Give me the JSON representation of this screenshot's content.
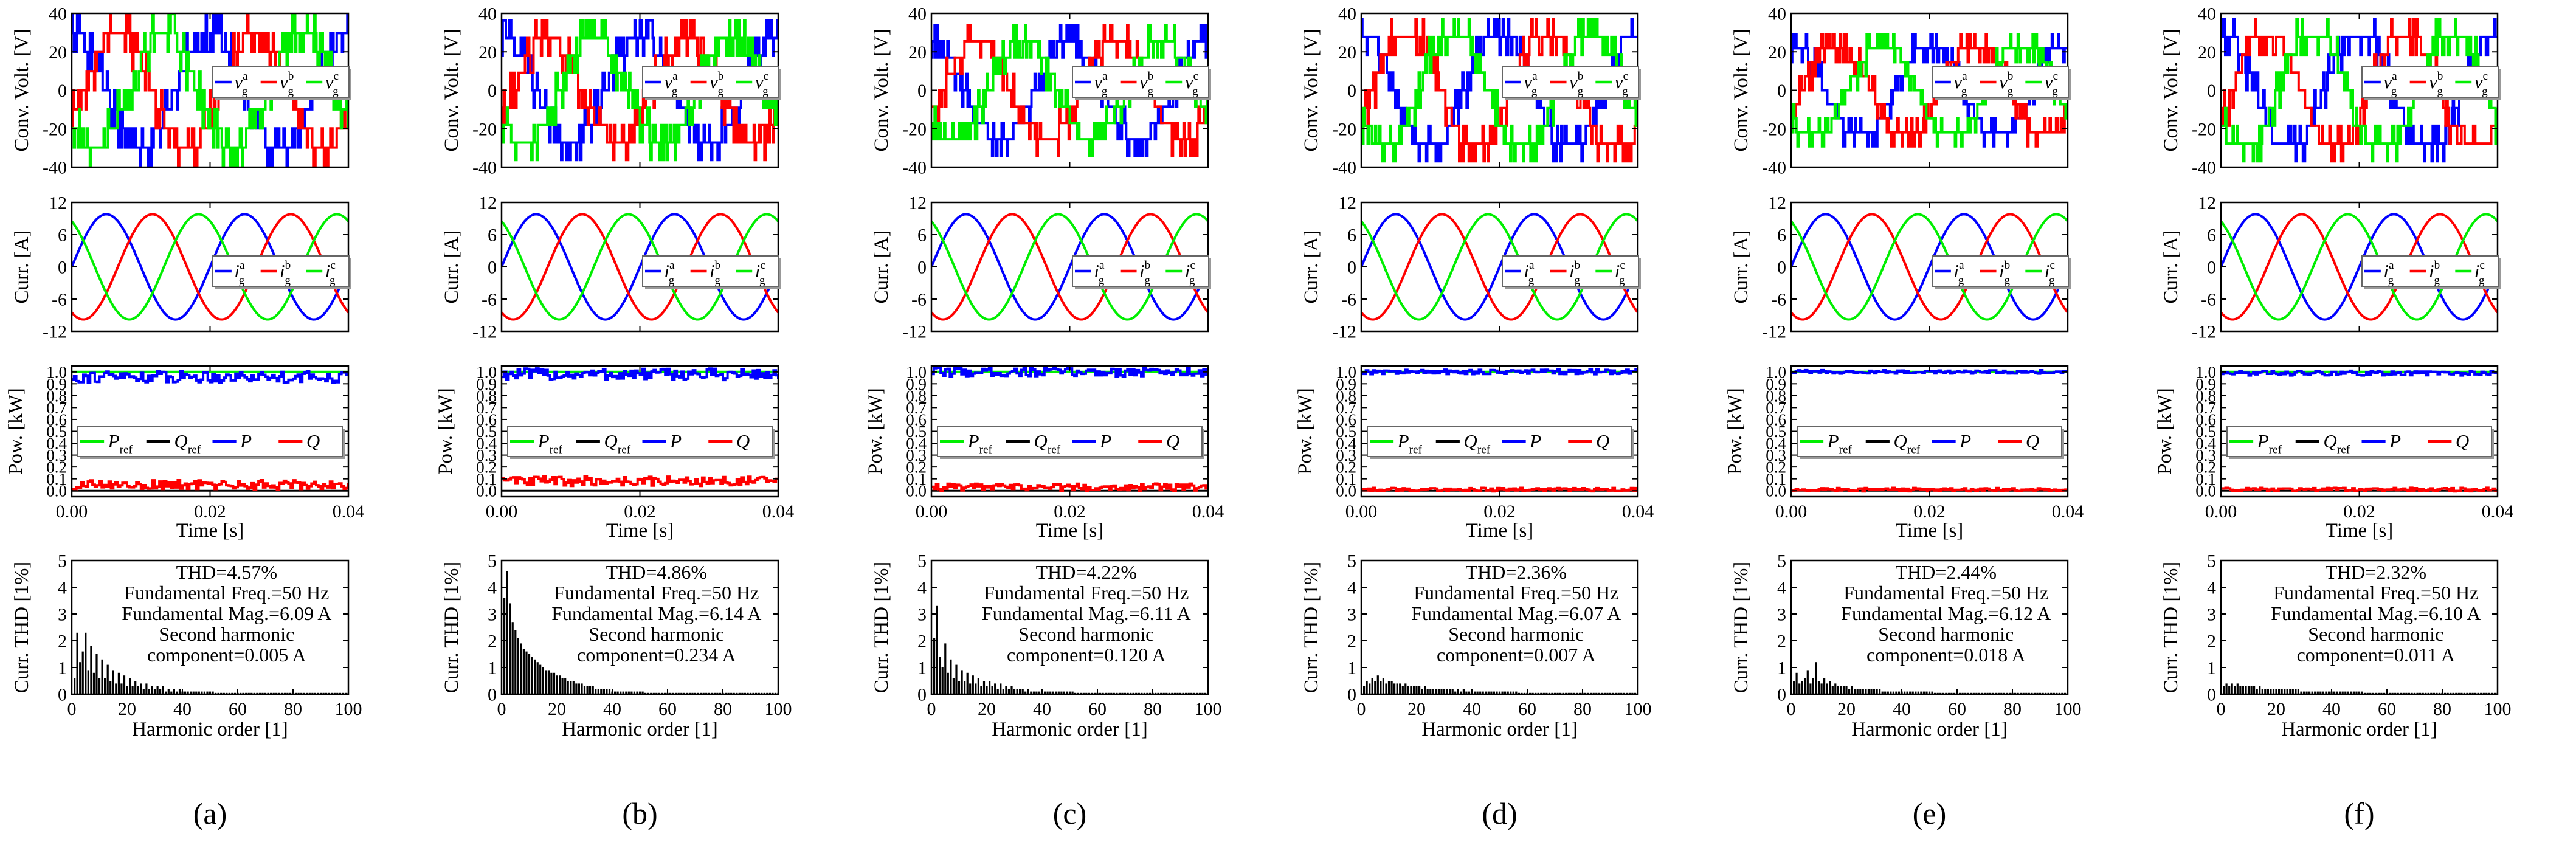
{
  "figure": {
    "panel_labels": [
      "(a)",
      "(b)",
      "(c)",
      "(d)",
      "(e)",
      "(f)"
    ],
    "colors": {
      "a": "#0000ff",
      "b": "#ff0000",
      "c": "#00ee00",
      "ref_q": "#000000",
      "axis": "#000000"
    },
    "rows": {
      "volt": {
        "ylabel": "Conv. Volt. [V]",
        "yticks": [
          "40",
          "20",
          "0",
          "-20",
          "-40"
        ],
        "ylim": [
          -40,
          40
        ],
        "legend": [
          {
            "sym": "v",
            "sub": "g",
            "sup": "a",
            "color": "a"
          },
          {
            "sym": "v",
            "sub": "g",
            "sup": "b",
            "color": "b"
          },
          {
            "sym": "v",
            "sub": "g",
            "sup": "c",
            "color": "c"
          }
        ]
      },
      "curr": {
        "ylabel": "Curr. [A]",
        "yticks": [
          "12",
          "6",
          "0",
          "-6",
          "-12"
        ],
        "ylim": [
          -12,
          12
        ],
        "legend": [
          {
            "sym": "i",
            "sub": "g",
            "sup": "a",
            "color": "a"
          },
          {
            "sym": "i",
            "sub": "g",
            "sup": "b",
            "color": "b"
          },
          {
            "sym": "i",
            "sub": "g",
            "sup": "c",
            "color": "c"
          }
        ]
      },
      "pow": {
        "ylabel": "Pow. [kW]",
        "yticks": [
          "1.0",
          "0.9",
          "0.8",
          "0.7",
          "0.6",
          "0.5",
          "0.4",
          "0.3",
          "0.2",
          "0.1",
          "0.0"
        ],
        "ylim": [
          -0.05,
          1.05
        ],
        "xlabel": "Time [s]",
        "xticks": [
          "0.00",
          "0.02",
          "0.04"
        ],
        "legend": [
          {
            "sym": "P",
            "sub": "ref",
            "sup": "",
            "color": "c"
          },
          {
            "sym": "Q",
            "sub": "ref",
            "sup": "",
            "color": "ref_q"
          },
          {
            "sym": "P",
            "sub": "",
            "sup": "",
            "color": "a"
          },
          {
            "sym": "Q",
            "sub": "",
            "sup": "",
            "color": "b"
          }
        ]
      },
      "thd": {
        "ylabel": "Curr. THD [1%]",
        "yticks": [
          "5",
          "4",
          "3",
          "2",
          "1",
          "0"
        ],
        "ylim": [
          0,
          5
        ],
        "xlabel": "Harmonic order [1]",
        "xticks": [
          "0",
          "20",
          "40",
          "60",
          "80",
          "100"
        ],
        "xlim": [
          0,
          100
        ]
      }
    },
    "annotation_prefix": {
      "thd": "THD=",
      "freq": "Fundamental Freq.=",
      "mag": "Fundamental Mag.=",
      "second1": "Second harmonic",
      "second2": "component="
    }
  },
  "chart_data": [
    {
      "panel": "(a)",
      "type": "line",
      "time_range": [
        0,
        0.04
      ],
      "voltage": {
        "peak_V": 35,
        "levels": 6,
        "noise": 0.35
      },
      "current": {
        "amplitude_A": 9.8,
        "frequency_Hz": 50
      },
      "power": {
        "P_ref_kW": 1.0,
        "Q_ref_kW": 0.0,
        "P_mean_kW": 0.96,
        "P_ripple_kW": 0.05,
        "Q_mean_kW": 0.05,
        "Q_ripple_kW": 0.04
      },
      "thd": {
        "text": "4.57%",
        "freq_text": "50 Hz",
        "mag_text": "6.09 A",
        "second_text": "0.005 A",
        "bars": [
          0.6,
          2.3,
          1.2,
          1.6,
          2.3,
          0.9,
          1.8,
          0.8,
          1.5,
          0.6,
          1.3,
          0.6,
          1.1,
          0.5,
          0.9,
          0.4,
          0.8,
          0.4,
          0.7,
          0.3,
          0.6,
          0.3,
          0.5,
          0.3,
          0.4,
          0.2,
          0.4,
          0.2,
          0.3,
          0.2,
          0.3,
          0.2,
          0.3,
          0.1,
          0.2,
          0.1,
          0.2,
          0.1,
          0.2,
          0.1,
          0.1,
          0.1,
          0.1,
          0.1,
          0.1,
          0.1,
          0.1,
          0.1,
          0.1,
          0.1,
          0.1,
          0.05,
          0.05,
          0.05,
          0.05,
          0.05,
          0.05,
          0.05,
          0.05,
          0.05,
          0.05,
          0.05,
          0.05,
          0.05,
          0.05,
          0.05,
          0.05,
          0.05,
          0.05,
          0.05,
          0.05,
          0.05,
          0.05,
          0.05,
          0.05,
          0.05,
          0.05,
          0.05,
          0.05,
          0.05,
          0.05,
          0.05,
          0.05,
          0.05,
          0.05,
          0.05,
          0.05,
          0.05,
          0.05,
          0.05,
          0.05,
          0.05,
          0.05,
          0.05,
          0.05,
          0.05,
          0.05,
          0.05,
          0.05,
          0.05
        ]
      }
    },
    {
      "panel": "(b)",
      "type": "line",
      "time_range": [
        0,
        0.04
      ],
      "voltage": {
        "peak_V": 32,
        "levels": 6,
        "noise": 0.4
      },
      "current": {
        "amplitude_A": 9.8,
        "frequency_Hz": 50
      },
      "power": {
        "P_ref_kW": 1.0,
        "Q_ref_kW": 0.0,
        "P_mean_kW": 0.98,
        "P_ripple_kW": 0.05,
        "Q_mean_kW": 0.08,
        "Q_ripple_kW": 0.04
      },
      "thd": {
        "text": "4.86%",
        "freq_text": "50 Hz",
        "mag_text": "6.14 A",
        "second_text": "0.234 A",
        "bars": [
          3.6,
          4.6,
          3.4,
          2.7,
          2.4,
          2.1,
          1.9,
          1.7,
          1.6,
          1.5,
          1.4,
          1.3,
          1.2,
          1.1,
          1.0,
          0.9,
          0.9,
          0.8,
          0.8,
          0.7,
          0.7,
          0.6,
          0.6,
          0.5,
          0.5,
          0.5,
          0.4,
          0.4,
          0.4,
          0.3,
          0.3,
          0.3,
          0.3,
          0.2,
          0.2,
          0.2,
          0.2,
          0.2,
          0.2,
          0.1,
          0.1,
          0.1,
          0.1,
          0.1,
          0.1,
          0.1,
          0.1,
          0.1,
          0.1,
          0.1,
          0.1,
          0.05,
          0.05,
          0.05,
          0.05,
          0.05,
          0.05,
          0.05,
          0.05,
          0.05,
          0.05,
          0.05,
          0.05,
          0.05,
          0.05,
          0.05,
          0.05,
          0.05,
          0.05,
          0.05,
          0.05,
          0.05,
          0.05,
          0.05,
          0.05,
          0.05,
          0.05,
          0.05,
          0.05,
          0.05,
          0.05,
          0.05,
          0.05,
          0.05,
          0.05,
          0.05,
          0.05,
          0.05,
          0.05,
          0.05,
          0.05,
          0.05,
          0.05,
          0.05,
          0.05,
          0.05,
          0.05,
          0.05,
          0.05,
          0.05
        ]
      }
    },
    {
      "panel": "(c)",
      "type": "line",
      "time_range": [
        0,
        0.04
      ],
      "voltage": {
        "peak_V": 30,
        "levels": 6,
        "noise": 0.3
      },
      "current": {
        "amplitude_A": 9.8,
        "frequency_Hz": 50
      },
      "power": {
        "P_ref_kW": 1.0,
        "Q_ref_kW": 0.0,
        "P_mean_kW": 1.0,
        "P_ripple_kW": 0.04,
        "Q_mean_kW": 0.03,
        "Q_ripple_kW": 0.03
      },
      "thd": {
        "text": "4.22%",
        "freq_text": "50 Hz",
        "mag_text": "6.11 A",
        "second_text": "0.120 A",
        "bars": [
          2.1,
          3.3,
          1.4,
          1.0,
          1.9,
          0.8,
          1.3,
          0.6,
          1.1,
          0.5,
          0.9,
          0.5,
          0.8,
          0.4,
          0.7,
          0.4,
          0.6,
          0.3,
          0.5,
          0.3,
          0.5,
          0.3,
          0.4,
          0.2,
          0.4,
          0.2,
          0.3,
          0.2,
          0.3,
          0.2,
          0.2,
          0.2,
          0.2,
          0.1,
          0.2,
          0.1,
          0.1,
          0.1,
          0.1,
          0.1,
          0.1,
          0.1,
          0.1,
          0.1,
          0.1,
          0.1,
          0.1,
          0.1,
          0.1,
          0.1,
          0.1,
          0.05,
          0.05,
          0.05,
          0.05,
          0.05,
          0.05,
          0.05,
          0.05,
          0.05,
          0.05,
          0.05,
          0.05,
          0.05,
          0.05,
          0.05,
          0.05,
          0.05,
          0.05,
          0.05,
          0.05,
          0.05,
          0.05,
          0.05,
          0.05,
          0.05,
          0.05,
          0.05,
          0.05,
          0.05,
          0.05,
          0.05,
          0.05,
          0.05,
          0.05,
          0.05,
          0.05,
          0.05,
          0.05,
          0.05,
          0.05,
          0.05,
          0.05,
          0.05,
          0.05,
          0.05,
          0.05,
          0.05,
          0.05,
          0.05
        ]
      }
    },
    {
      "panel": "(d)",
      "type": "line",
      "time_range": [
        0,
        0.04
      ],
      "voltage": {
        "peak_V": 38,
        "levels": 7,
        "noise": 0.3
      },
      "current": {
        "amplitude_A": 9.8,
        "frequency_Hz": 50
      },
      "power": {
        "P_ref_kW": 1.0,
        "Q_ref_kW": 0.0,
        "P_mean_kW": 1.0,
        "P_ripple_kW": 0.02,
        "Q_mean_kW": 0.01,
        "Q_ripple_kW": 0.015
      },
      "thd": {
        "text": "2.36%",
        "freq_text": "50 Hz",
        "mag_text": "6.07 A",
        "second_text": "0.007 A",
        "bars": [
          0.3,
          0.5,
          0.4,
          0.6,
          0.5,
          0.7,
          0.5,
          0.6,
          0.4,
          0.5,
          0.5,
          0.4,
          0.4,
          0.4,
          0.3,
          0.4,
          0.3,
          0.3,
          0.3,
          0.3,
          0.3,
          0.2,
          0.3,
          0.2,
          0.2,
          0.2,
          0.2,
          0.2,
          0.2,
          0.2,
          0.2,
          0.2,
          0.2,
          0.1,
          0.2,
          0.1,
          0.2,
          0.1,
          0.1,
          0.1,
          0.1,
          0.1,
          0.1,
          0.1,
          0.1,
          0.1,
          0.1,
          0.1,
          0.1,
          0.1,
          0.1,
          0.1,
          0.1,
          0.1,
          0.1,
          0.1,
          0.05,
          0.05,
          0.05,
          0.05,
          0.05,
          0.05,
          0.05,
          0.05,
          0.05,
          0.05,
          0.05,
          0.05,
          0.05,
          0.05,
          0.05,
          0.05,
          0.05,
          0.05,
          0.05,
          0.05,
          0.05,
          0.05,
          0.05,
          0.05,
          0.05,
          0.05,
          0.05,
          0.05,
          0.05,
          0.05,
          0.05,
          0.05,
          0.05,
          0.05,
          0.05,
          0.05,
          0.05,
          0.05,
          0.05,
          0.05,
          0.05,
          0.05,
          0.05,
          0.05
        ]
      }
    },
    {
      "panel": "(e)",
      "type": "line",
      "time_range": [
        0,
        0.04
      ],
      "voltage": {
        "peak_V": 30,
        "levels": 7,
        "noise": 0.3
      },
      "current": {
        "amplitude_A": 9.8,
        "frequency_Hz": 50
      },
      "power": {
        "P_ref_kW": 1.0,
        "Q_ref_kW": 0.0,
        "P_mean_kW": 1.0,
        "P_ripple_kW": 0.015,
        "Q_mean_kW": 0.01,
        "Q_ripple_kW": 0.015
      },
      "thd": {
        "text": "2.44%",
        "freq_text": "50 Hz",
        "mag_text": "6.12 A",
        "second_text": "0.018 A",
        "bars": [
          0.5,
          0.8,
          0.4,
          0.5,
          0.6,
          0.9,
          0.4,
          0.6,
          1.2,
          0.5,
          0.4,
          0.6,
          0.4,
          0.5,
          0.3,
          0.4,
          0.3,
          0.3,
          0.3,
          0.3,
          0.2,
          0.3,
          0.2,
          0.2,
          0.2,
          0.2,
          0.2,
          0.2,
          0.2,
          0.2,
          0.2,
          0.2,
          0.1,
          0.1,
          0.1,
          0.1,
          0.1,
          0.1,
          0.1,
          0.1,
          0.1,
          0.1,
          0.1,
          0.1,
          0.1,
          0.1,
          0.1,
          0.1,
          0.1,
          0.1,
          0.1,
          0.05,
          0.05,
          0.05,
          0.05,
          0.05,
          0.05,
          0.05,
          0.05,
          0.05,
          0.05,
          0.05,
          0.05,
          0.05,
          0.05,
          0.05,
          0.05,
          0.05,
          0.05,
          0.05,
          0.05,
          0.05,
          0.05,
          0.05,
          0.05,
          0.05,
          0.05,
          0.05,
          0.05,
          0.05,
          0.05,
          0.05,
          0.05,
          0.05,
          0.05,
          0.05,
          0.05,
          0.05,
          0.05,
          0.05,
          0.05,
          0.05,
          0.05,
          0.05,
          0.05,
          0.05,
          0.05,
          0.05,
          0.05,
          0.05
        ]
      }
    },
    {
      "panel": "(f)",
      "type": "line",
      "time_range": [
        0,
        0.04
      ],
      "voltage": {
        "peak_V": 38,
        "levels": 7,
        "noise": 0.3
      },
      "current": {
        "amplitude_A": 9.8,
        "frequency_Hz": 50
      },
      "power": {
        "P_ref_kW": 1.0,
        "Q_ref_kW": 0.0,
        "P_mean_kW": 0.99,
        "P_ripple_kW": 0.02,
        "Q_mean_kW": 0.01,
        "Q_ripple_kW": 0.015
      },
      "thd": {
        "text": "2.32%",
        "freq_text": "50 Hz",
        "mag_text": "6.10 A",
        "second_text": "0.011 A",
        "bars": [
          0.3,
          0.4,
          0.3,
          0.4,
          0.3,
          0.4,
          0.3,
          0.3,
          0.3,
          0.3,
          0.3,
          0.3,
          0.2,
          0.3,
          0.2,
          0.2,
          0.2,
          0.2,
          0.2,
          0.2,
          0.2,
          0.2,
          0.2,
          0.2,
          0.2,
          0.2,
          0.2,
          0.2,
          0.1,
          0.1,
          0.1,
          0.1,
          0.1,
          0.1,
          0.1,
          0.1,
          0.1,
          0.1,
          0.1,
          0.1,
          0.1,
          0.1,
          0.1,
          0.1,
          0.1,
          0.1,
          0.1,
          0.1,
          0.1,
          0.1,
          0.1,
          0.05,
          0.05,
          0.05,
          0.05,
          0.05,
          0.05,
          0.05,
          0.05,
          0.05,
          0.05,
          0.05,
          0.05,
          0.05,
          0.05,
          0.05,
          0.05,
          0.05,
          0.05,
          0.05,
          0.05,
          0.05,
          0.05,
          0.05,
          0.05,
          0.05,
          0.05,
          0.05,
          0.05,
          0.05,
          0.05,
          0.05,
          0.05,
          0.05,
          0.05,
          0.05,
          0.05,
          0.05,
          0.05,
          0.05,
          0.05,
          0.05,
          0.05,
          0.05,
          0.05,
          0.05,
          0.05,
          0.05,
          0.05,
          0.05
        ]
      }
    }
  ]
}
